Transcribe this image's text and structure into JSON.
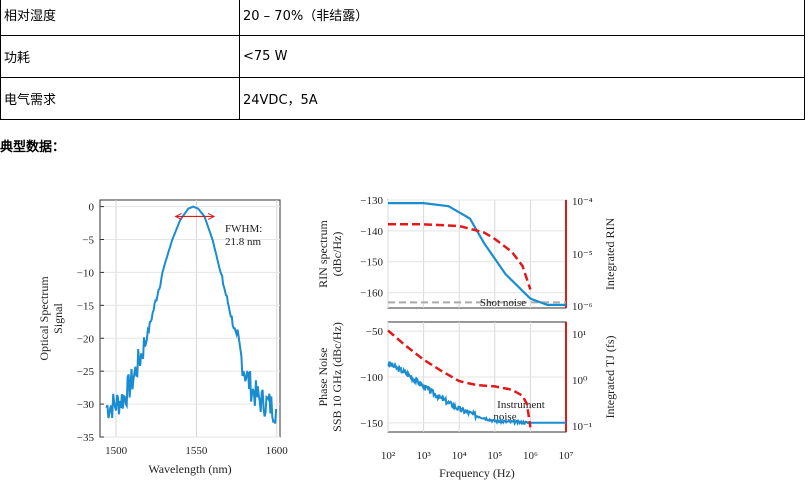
{
  "spec_table": {
    "rows": [
      {
        "key": "相对湿度",
        "value": "20 – 70%（非结露）"
      },
      {
        "key": "功耗",
        "value": "<75 W"
      },
      {
        "key": "电气需求",
        "value": "24VDC，5A"
      }
    ]
  },
  "caption": "典型数据：",
  "colors": {
    "blue": "#1a8cd0",
    "red": "#e01a1a",
    "gray": "#aaaaaa"
  },
  "chart_data": [
    {
      "type": "line",
      "xlabel": "Wavelength (nm)",
      "ylabel": [
        "Optical Spectrum",
        "Signal"
      ],
      "xlim": [
        1490,
        1602
      ],
      "ylim": [
        -35,
        1
      ],
      "xticks": [
        1500,
        1550,
        1600
      ],
      "yticks": [
        0,
        -5,
        -10,
        -15,
        -20,
        -25,
        -30,
        -35
      ],
      "annotation": {
        "lines": [
          "FWHM:",
          "21.8 nm"
        ],
        "x_start": 1537,
        "x_end": 1561,
        "y": -1.5
      },
      "series": [
        {
          "x": [
            1494,
            1500,
            1505,
            1510,
            1515,
            1520,
            1525,
            1530,
            1535,
            1540,
            1545,
            1548,
            1551,
            1555,
            1560,
            1565,
            1570,
            1575,
            1580,
            1585,
            1590,
            1595,
            1600
          ],
          "y": [
            -30.5,
            -30,
            -29,
            -26.5,
            -23,
            -19,
            -14,
            -9,
            -5,
            -2,
            -0.3,
            0,
            -0.3,
            -1.5,
            -5,
            -10,
            -15,
            -20,
            -25,
            -28,
            -29.5,
            -30,
            -31
          ]
        }
      ]
    },
    {
      "type": "line",
      "xlabel": "",
      "ylabel": [
        "RIN spectrum",
        "(dBc/Hz)"
      ],
      "y2label": "Integrated RIN",
      "xscale": "log",
      "xlim": [
        100,
        10000000
      ],
      "ylim": [
        -165,
        -130
      ],
      "yticks": [
        -130,
        -140,
        -150,
        -160
      ],
      "y2scale": "log",
      "y2lim": [
        1e-06,
        0.0001
      ],
      "y2ticks": [
        "10⁻⁴",
        "10⁻⁵",
        "10⁻⁶"
      ],
      "annotation": "Shot noise",
      "series": [
        {
          "x": [
            100,
            1000,
            5000,
            20000,
            50000,
            200000,
            1000000,
            3000000,
            10000000
          ],
          "y": [
            -131,
            -131,
            -132,
            -136,
            -144,
            -154,
            -162,
            -164,
            -164
          ]
        },
        {
          "x": [
            100,
            1000,
            10000,
            50000,
            100000,
            300000,
            600000,
            1000000
          ],
          "y": [
            3.55e-05,
            3.55e-05,
            3.3e-05,
            2.5e-05,
            1.9e-05,
            1.1e-05,
            6e-06,
            2.2e-06
          ],
          "axis": "y2"
        },
        {
          "x": [
            100,
            10000000
          ],
          "y": [
            -163.2,
            -163.2
          ]
        }
      ]
    },
    {
      "type": "line",
      "xlabel": "Frequency (Hz)",
      "ylabel": [
        "Phase Noise",
        "SSB 10 GHz (dBc/Hz)"
      ],
      "y2label": "Integrated TJ (fs)",
      "xscale": "log",
      "xlim": [
        100,
        10000000
      ],
      "ylim": [
        -160,
        -40
      ],
      "yticks": [
        -50,
        -100,
        -150
      ],
      "xticks": [
        "10²",
        "10³",
        "10⁴",
        "10⁵",
        "10⁶",
        "10⁷"
      ],
      "y2scale": "log",
      "y2lim": [
        0.08,
        15
      ],
      "y2ticks": [
        "10¹",
        "10⁰",
        "10⁻¹"
      ],
      "annotation": [
        "Instrument",
        "noise"
      ],
      "series": [
        {
          "x": [
            100,
            300,
            1000,
            3000,
            10000,
            30000,
            100000,
            1000000,
            10000000
          ],
          "y": [
            -85,
            -95,
            -110,
            -123,
            -135,
            -142,
            -148,
            -150,
            -150
          ]
        },
        {
          "x": [
            100,
            300,
            1000,
            3000,
            10000,
            30000,
            100000,
            300000,
            600000,
            800000,
            1000000
          ],
          "y": [
            10,
            5,
            2.5,
            1.5,
            0.9,
            0.75,
            0.7,
            0.6,
            0.45,
            0.3,
            0.1
          ],
          "axis": "y2"
        }
      ]
    }
  ]
}
